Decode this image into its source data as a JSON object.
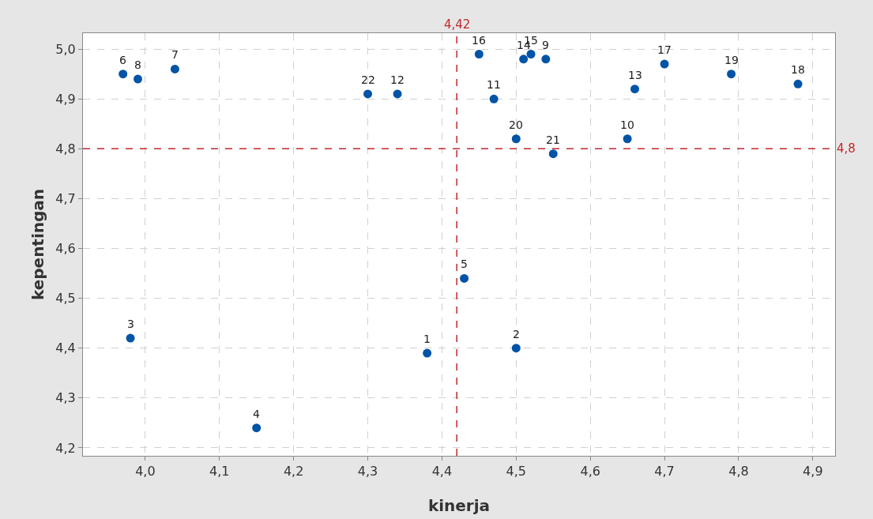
{
  "chart_data": {
    "type": "scatter",
    "xlabel": "kinerja",
    "ylabel": "kepentingan",
    "x": [
      4.38,
      4.5,
      3.98,
      4.15,
      4.43,
      3.97,
      4.04,
      3.99,
      4.54,
      4.65,
      4.47,
      4.34,
      4.66,
      4.51,
      4.52,
      4.45,
      4.7,
      4.88,
      4.79,
      4.5,
      4.55,
      4.3
    ],
    "values": [
      4.39,
      4.4,
      4.42,
      4.24,
      4.54,
      4.95,
      4.96,
      4.94,
      4.98,
      4.82,
      4.9,
      4.91,
      4.92,
      4.98,
      4.99,
      4.99,
      4.97,
      4.93,
      4.95,
      4.82,
      4.79,
      4.91
    ],
    "color": "#0054a6",
    "marker": "circle",
    "annotations": [
      {
        "text": "1",
        "x": 4.38,
        "y": 4.39
      },
      {
        "text": "2",
        "x": 4.5,
        "y": 4.4
      },
      {
        "text": "3",
        "x": 3.98,
        "y": 4.42
      },
      {
        "text": "4",
        "x": 4.15,
        "y": 4.24
      },
      {
        "text": "5",
        "x": 4.43,
        "y": 4.54
      },
      {
        "text": "6",
        "x": 3.97,
        "y": 4.95
      },
      {
        "text": "7",
        "x": 4.04,
        "y": 4.96
      },
      {
        "text": "8",
        "x": 3.99,
        "y": 4.94
      },
      {
        "text": "9",
        "x": 4.54,
        "y": 4.98
      },
      {
        "text": "10",
        "x": 4.65,
        "y": 4.82
      },
      {
        "text": "11",
        "x": 4.47,
        "y": 4.9
      },
      {
        "text": "12",
        "x": 4.34,
        "y": 4.91
      },
      {
        "text": "13",
        "x": 4.66,
        "y": 4.92
      },
      {
        "text": "14",
        "x": 4.51,
        "y": 4.98
      },
      {
        "text": "15",
        "x": 4.52,
        "y": 4.99
      },
      {
        "text": "16",
        "x": 4.45,
        "y": 4.99
      },
      {
        "text": "17",
        "x": 4.7,
        "y": 4.97
      },
      {
        "text": "18",
        "x": 4.88,
        "y": 4.93
      },
      {
        "text": "19",
        "x": 4.79,
        "y": 4.95
      },
      {
        "text": "20",
        "x": 4.5,
        "y": 4.82
      },
      {
        "text": "21",
        "x": 4.55,
        "y": 4.79
      },
      {
        "text": "22",
        "x": 4.3,
        "y": 4.91
      }
    ],
    "ref_lines": [
      {
        "axis": "x",
        "value": 4.42,
        "label": "4,42",
        "color": "#c0282d",
        "line_style": "dashed"
      },
      {
        "axis": "y",
        "value": 4.8,
        "label": "4,8",
        "color": "#c0282d",
        "line_style": "dashed"
      }
    ],
    "xlim": [
      3.916,
      4.93
    ],
    "ylim": [
      4.184,
      5.032
    ],
    "xticks": [
      {
        "value": 4.0,
        "label": "4,0"
      },
      {
        "value": 4.1,
        "label": "4,1"
      },
      {
        "value": 4.2,
        "label": "4,2"
      },
      {
        "value": 4.3,
        "label": "4,3"
      },
      {
        "value": 4.4,
        "label": "4,4"
      },
      {
        "value": 4.5,
        "label": "4,5"
      },
      {
        "value": 4.6,
        "label": "4,6"
      },
      {
        "value": 4.7,
        "label": "4,7"
      },
      {
        "value": 4.8,
        "label": "4,8"
      },
      {
        "value": 4.9,
        "label": "4,9"
      }
    ],
    "yticks": [
      {
        "value": 4.2,
        "label": "4,2"
      },
      {
        "value": 4.3,
        "label": "4,3"
      },
      {
        "value": 4.4,
        "label": "4,4"
      },
      {
        "value": 4.5,
        "label": "4,5"
      },
      {
        "value": 4.6,
        "label": "4,6"
      },
      {
        "value": 4.7,
        "label": "4,7"
      },
      {
        "value": 4.8,
        "label": "4,8"
      },
      {
        "value": 4.9,
        "label": "4,9"
      },
      {
        "value": 5.0,
        "label": "5,0"
      }
    ],
    "grid": true
  }
}
